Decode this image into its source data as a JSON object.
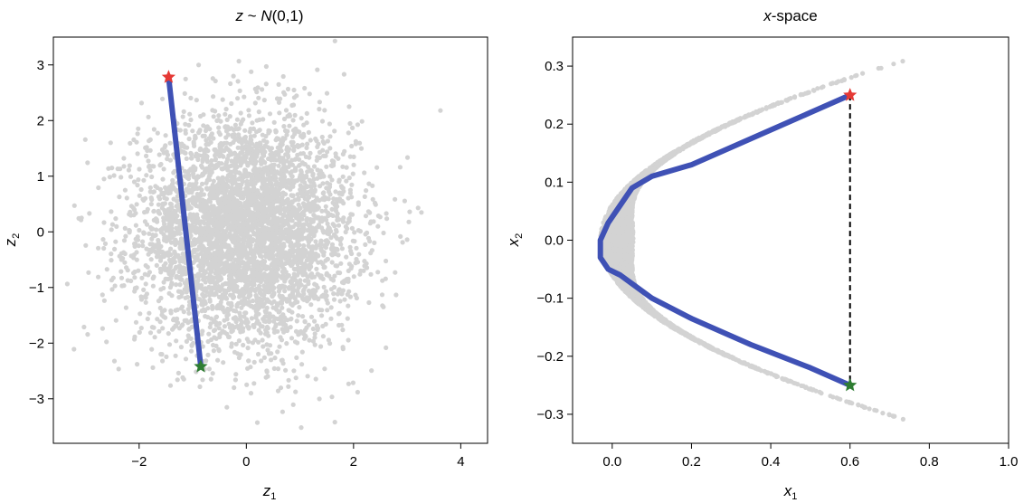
{
  "chart_data": [
    {
      "type": "scatter",
      "title_parts": [
        "z",
        " ~ ",
        "N",
        "(0,1)"
      ],
      "xlabel": "z",
      "xlabel_sub": "1",
      "ylabel": "z",
      "ylabel_sub": "2",
      "xlim": [
        -3.6,
        4.5
      ],
      "ylim": [
        -3.8,
        3.5
      ],
      "xticks": [
        -2,
        0,
        2,
        4
      ],
      "yticks": [
        -3,
        -2,
        -1,
        0,
        1,
        2,
        3
      ],
      "grid": false,
      "cloud": {
        "distribution": "standard-normal",
        "color": "#d3d3d3"
      },
      "path": {
        "color": "#3f51b5",
        "x": [
          -1.45,
          -0.85
        ],
        "y": [
          2.78,
          -2.42
        ]
      },
      "start_marker": {
        "x": -1.45,
        "y": 2.78,
        "color": "#e53935"
      },
      "end_marker": {
        "x": -0.85,
        "y": -2.42,
        "color": "#2e7d32"
      }
    },
    {
      "type": "scatter",
      "title_parts": [
        "x",
        "-space"
      ],
      "xlabel": "x",
      "xlabel_sub": "1",
      "ylabel": "x",
      "ylabel_sub": "2",
      "xlim": [
        -0.1,
        1.0
      ],
      "ylim": [
        -0.35,
        0.35
      ],
      "xticks": [
        0.0,
        0.2,
        0.4,
        0.6,
        0.8,
        1.0
      ],
      "xtick_labels": [
        "0.0",
        "0.2",
        "0.4",
        "0.6",
        "0.8",
        "1.0"
      ],
      "yticks": [
        -0.3,
        -0.2,
        -0.1,
        0.0,
        0.1,
        0.2,
        0.3
      ],
      "ytick_labels": [
        "−0.3",
        "−0.2",
        "−0.1",
        "0.0",
        "0.1",
        "0.2",
        "0.3"
      ],
      "grid": false,
      "cloud": {
        "shape": "parabola",
        "color": "#d3d3d3"
      },
      "path": {
        "color": "#3f51b5",
        "x": [
          0.6,
          0.5,
          0.4,
          0.3,
          0.2,
          0.1,
          0.05,
          0.02,
          -0.01,
          -0.03,
          -0.03,
          -0.01,
          0.02,
          0.05,
          0.1,
          0.2,
          0.35,
          0.5,
          0.6
        ],
        "y": [
          0.25,
          0.22,
          0.19,
          0.16,
          0.13,
          0.11,
          0.09,
          0.06,
          0.03,
          0.0,
          -0.03,
          -0.05,
          -0.06,
          -0.075,
          -0.1,
          -0.135,
          -0.18,
          -0.22,
          -0.25
        ]
      },
      "dashed_line": {
        "x": [
          0.6,
          0.6
        ],
        "y": [
          0.25,
          -0.25
        ],
        "color": "#000000"
      },
      "start_marker": {
        "x": 0.6,
        "y": 0.25,
        "color": "#e53935"
      },
      "end_marker": {
        "x": 0.6,
        "y": -0.25,
        "color": "#2e7d32"
      }
    }
  ]
}
